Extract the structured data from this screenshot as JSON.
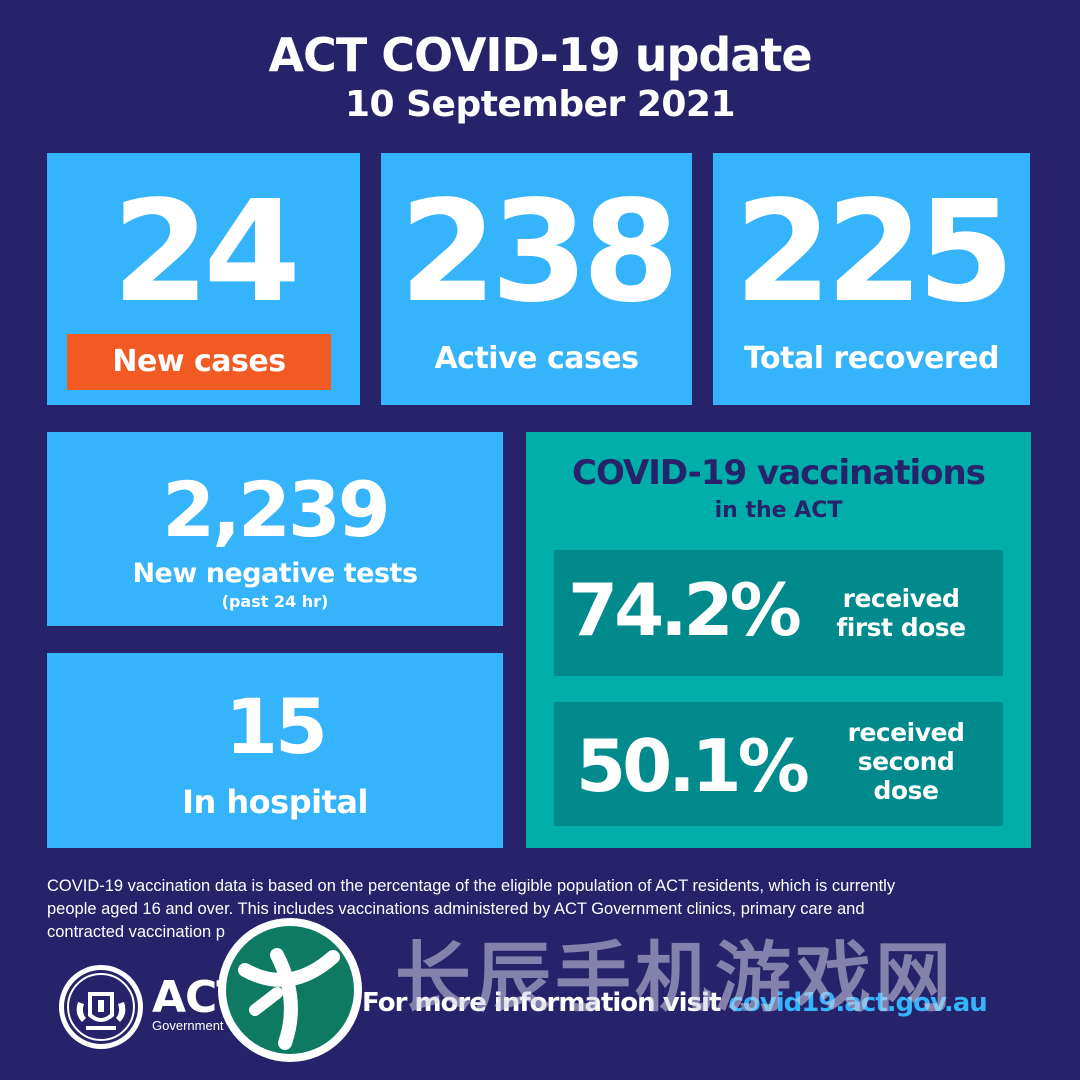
{
  "header": {
    "title": "ACT COVID-19 update",
    "date": "10 September 2021"
  },
  "stats": {
    "new_cases": {
      "value": "24",
      "label": "New cases"
    },
    "active_cases": {
      "value": "238",
      "label": "Active cases"
    },
    "total_recovered": {
      "value": "225",
      "label": "Total recovered"
    },
    "negative_tests": {
      "value": "2,239",
      "label": "New negative tests",
      "note": "(past 24 hr)"
    },
    "in_hospital": {
      "value": "15",
      "label": "In hospital"
    }
  },
  "vaccinations": {
    "title": "COVID-19 vaccinations",
    "subtitle": "in the ACT",
    "first_dose": {
      "percent": "74.2%",
      "line1": "received",
      "line2": "first dose"
    },
    "second_dose": {
      "percent": "50.1%",
      "line1": "received",
      "line2": "second",
      "line3": "dose"
    }
  },
  "footnote": {
    "line1": "COVID-19 vaccination data is based on the percentage of the eligible population of ACT residents, which is currently",
    "line2": "people aged 16 and over. This includes vaccinations administered by ACT Government clinics, primary care and",
    "line3": "contracted vaccination p"
  },
  "footer": {
    "logo_text": "ACT",
    "logo_subtext": "Government",
    "more_info_prefix": "For more information visit",
    "more_info_link": "covid19.act.gov.au"
  },
  "watermark": {
    "text": "长辰手机游戏网"
  },
  "colors": {
    "background": "#27236a",
    "box": "#35b3fb",
    "badge": "#f15a22",
    "vax_panel": "#00aea9",
    "vax_row": "#008a8c"
  },
  "icons": [
    "act-government-crest-icon",
    "watermark-logo-icon"
  ]
}
